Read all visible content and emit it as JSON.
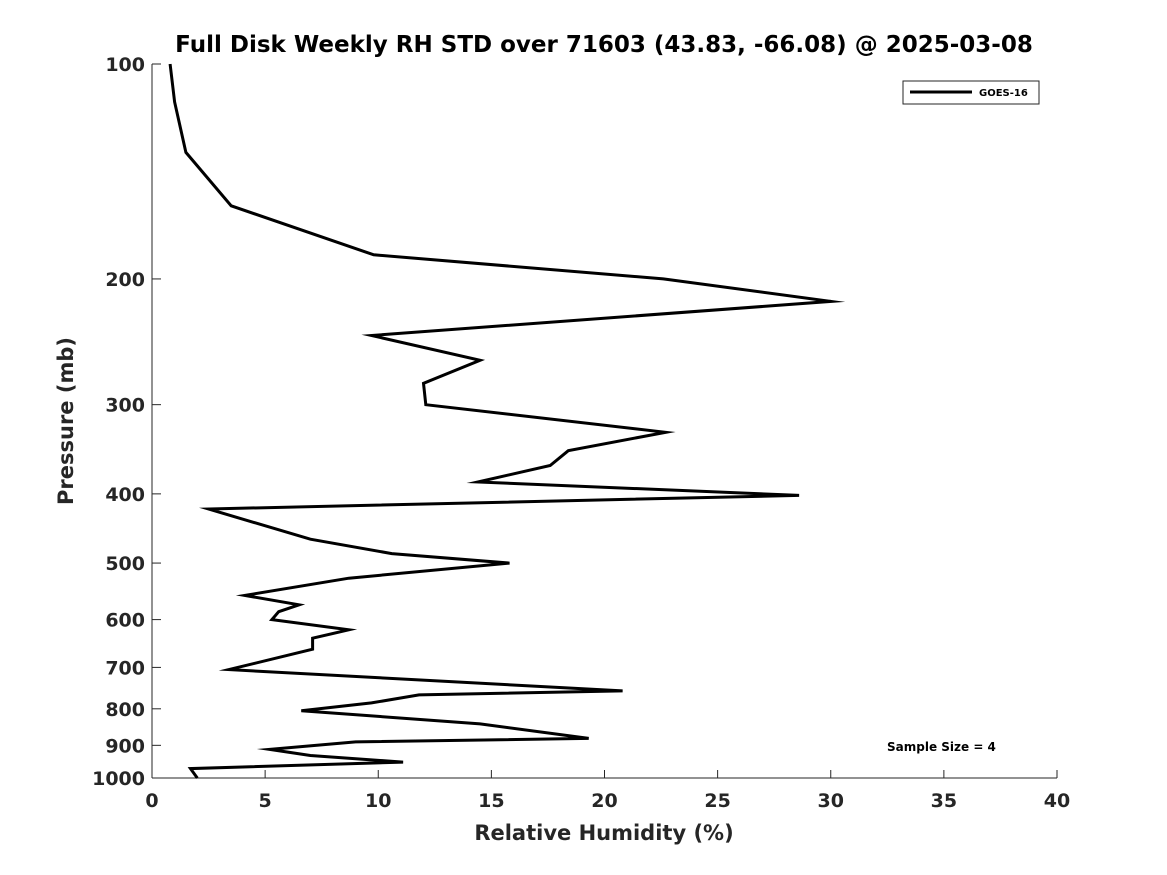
{
  "chart_data": {
    "type": "line",
    "title": "Full Disk Weekly RH STD over 71603 (43.83, -66.08) @ 2025-03-08",
    "xlabel": "Relative Humidity (%)",
    "ylabel": "Pressure (mb)",
    "xlim": [
      0,
      40
    ],
    "ylim": [
      100,
      1000
    ],
    "yscale": "log",
    "y_reversed": true,
    "xticks": [
      0,
      5,
      10,
      15,
      20,
      25,
      30,
      35,
      40
    ],
    "yticks": [
      100,
      200,
      300,
      400,
      500,
      600,
      700,
      800,
      900,
      1000
    ],
    "grid": false,
    "legend": {
      "position": "top-right",
      "entries": [
        "GOES-16"
      ]
    },
    "annotation": "Sample Size = 4",
    "series": [
      {
        "name": "GOES-16",
        "color": "#000000",
        "x": [
          0.8,
          1.0,
          1.5,
          3.5,
          9.8,
          22.6,
          30.0,
          9.7,
          14.5,
          12.0,
          12.1,
          22.7,
          18.4,
          17.6,
          14.4,
          28.6,
          2.5,
          7.0,
          10.6,
          15.8,
          8.7,
          4.1,
          6.5,
          5.6,
          5.3,
          8.7,
          7.1,
          7.1,
          3.4,
          20.8,
          11.8,
          9.7,
          6.6,
          14.5,
          19.3,
          9.0,
          5.2,
          7.0,
          11.1,
          1.7,
          2.0
        ],
        "y": [
          100,
          113,
          133,
          158,
          185,
          200,
          215,
          240,
          260,
          280,
          300,
          328,
          348,
          365,
          385,
          402,
          420,
          463,
          485,
          500,
          525,
          555,
          572,
          585,
          600,
          620,
          637,
          660,
          705,
          755,
          765,
          785,
          805,
          840,
          880,
          890,
          912,
          930,
          950,
          970,
          1000
        ]
      }
    ]
  }
}
